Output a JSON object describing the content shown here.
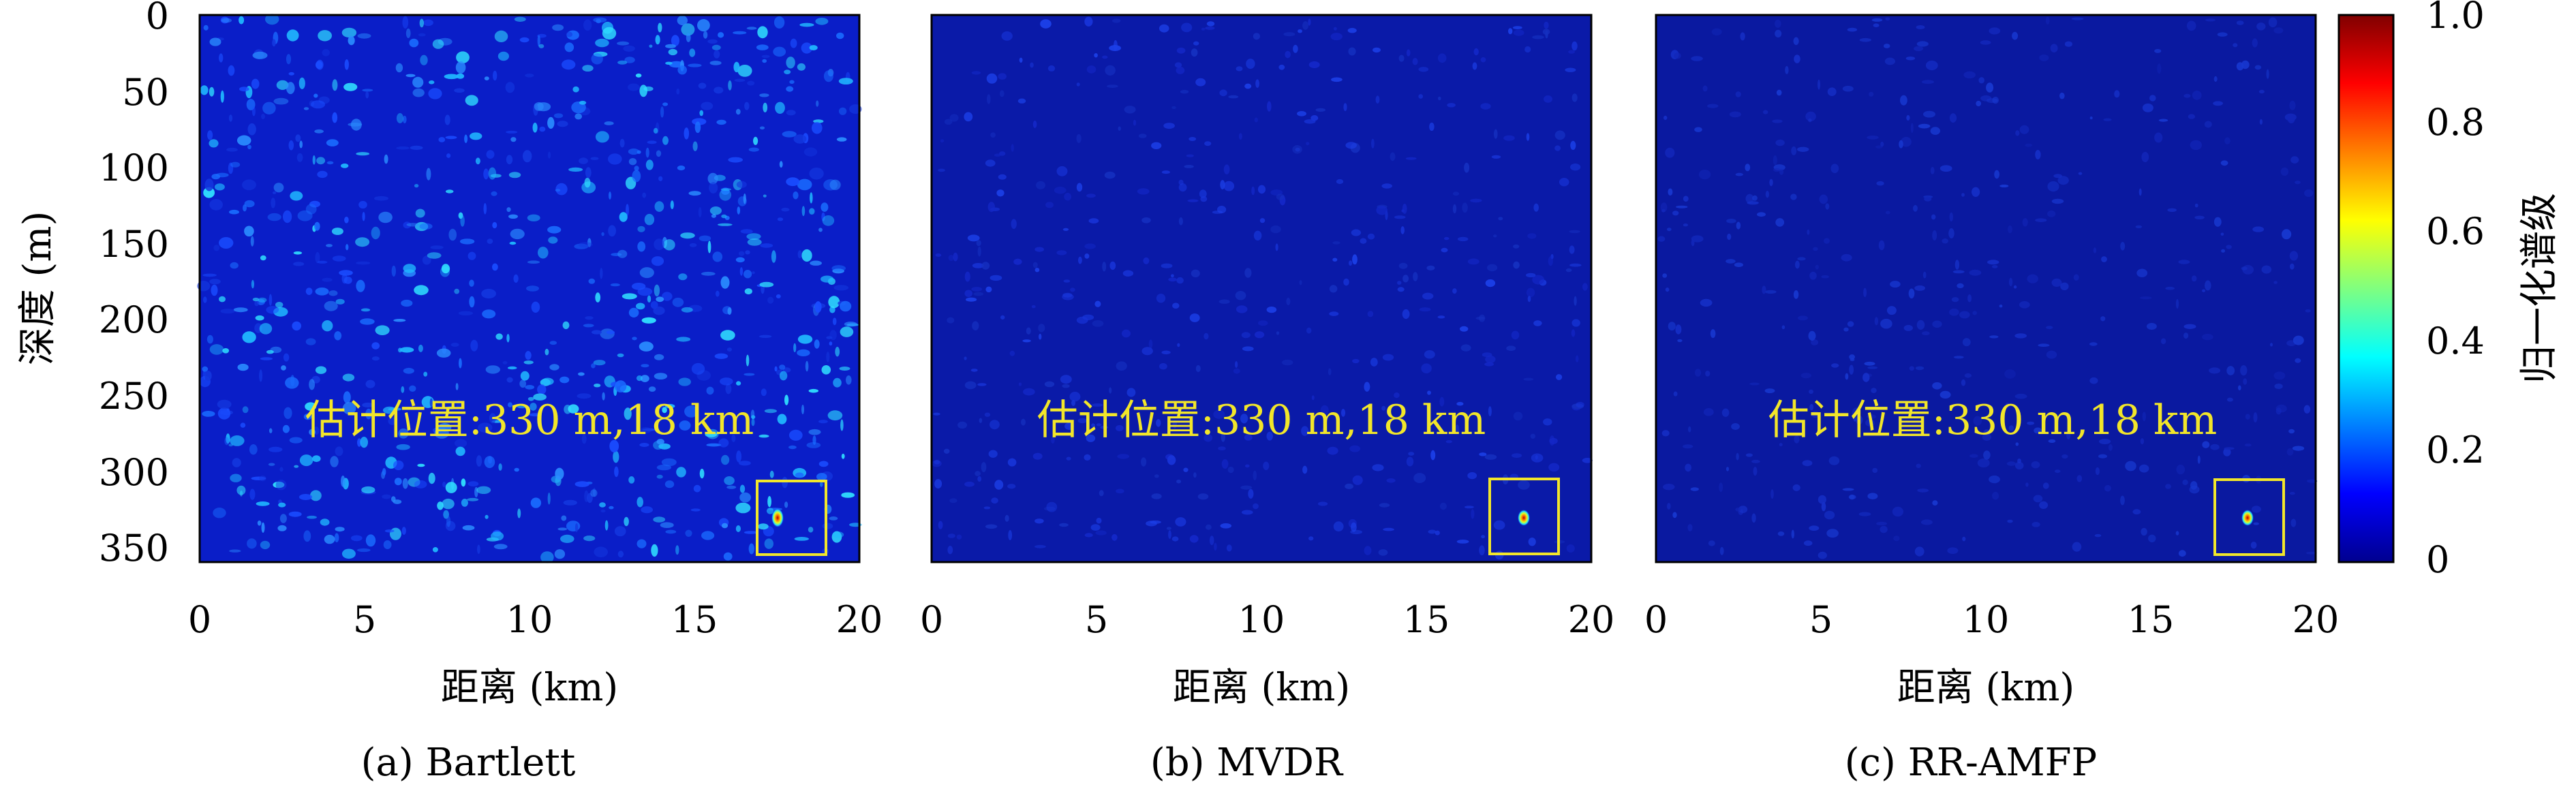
{
  "chart_data": [
    {
      "type": "heatmap",
      "caption": "(a) Bartlett",
      "xlabel": "距离 (km)",
      "ylabel": "深度 (m)",
      "xlim": [
        0,
        20
      ],
      "ylim": [
        360,
        0
      ],
      "xticks": [
        "0",
        "5",
        "10",
        "15",
        "20"
      ],
      "yticks": [
        "0",
        "50",
        "100",
        "150",
        "200",
        "250",
        "300",
        "350"
      ],
      "annotation": "估计位置:330 m,18 km",
      "peak": {
        "range_km": 18,
        "depth_m": 330,
        "value": 1.0
      },
      "background_level": "high",
      "target_box_color": "#e8e000"
    },
    {
      "type": "heatmap",
      "caption": "(b) MVDR",
      "xlabel": "距离 (km)",
      "xlim": [
        0,
        20
      ],
      "ylim": [
        360,
        0
      ],
      "xticks": [
        "0",
        "5",
        "10",
        "15",
        "20"
      ],
      "annotation": "估计位置:330 m,18 km",
      "peak": {
        "range_km": 18,
        "depth_m": 330,
        "value": 1.0
      },
      "background_level": "low",
      "target_box_color": "#e8e000"
    },
    {
      "type": "heatmap",
      "caption": "(c) RR-AMFP",
      "xlabel": "距离 (km)",
      "xlim": [
        0,
        20
      ],
      "ylim": [
        360,
        0
      ],
      "xticks": [
        "0",
        "5",
        "10",
        "15",
        "20"
      ],
      "annotation": "估计位置:330 m,18 km",
      "peak": {
        "range_km": 18,
        "depth_m": 330,
        "value": 1.0
      },
      "background_level": "very low",
      "target_box_color": "#e8e000"
    }
  ],
  "colorbar": {
    "label": "归一化谱级",
    "ticks": [
      "0",
      "0.2",
      "0.4",
      "0.6",
      "0.8",
      "1.0"
    ],
    "range": [
      0,
      1
    ],
    "colormap": "jet"
  }
}
